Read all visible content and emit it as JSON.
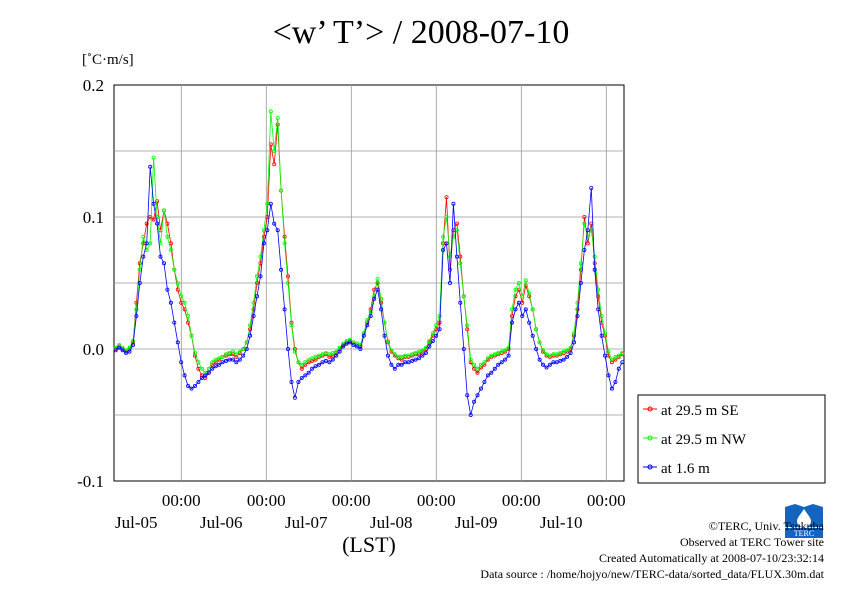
{
  "title": "<w’ T’> / 2008-07-10",
  "unit_label": "[˚C·m/s]",
  "credits": {
    "copyright": "©TERC, Univ. Tsukuba",
    "site": "Observed at TERC Tower site",
    "created": "Created Automatically at 2008-07-10/23:32:14",
    "source": "Data source : /home/hojyo/new/TERC-data/sorted_data/FLUX.30m.dat",
    "logo_text": "TERC"
  },
  "chart_data": {
    "type": "line",
    "title": "<w’ T’> / 2008-07-10",
    "xlabel": "(LST)",
    "ylabel": "[˚C·m/s]",
    "ylim": [
      -0.1,
      0.2
    ],
    "xlim_hours": [
      0,
      144
    ],
    "yticks": [
      -0.1,
      0.0,
      0.1,
      0.2
    ],
    "ytick_labels": [
      "-0.1",
      "0.0",
      "0.1",
      "0.2"
    ],
    "xticks": [
      {
        "top": "00:00",
        "bottom": "Jul-05"
      },
      {
        "top": "00:00",
        "bottom": "Jul-06"
      },
      {
        "top": "00:00",
        "bottom": "Jul-07"
      },
      {
        "top": "00:00",
        "bottom": "Jul-08"
      },
      {
        "top": "00:00",
        "bottom": "Jul-09"
      },
      {
        "top": "00:00",
        "bottom": "Jul-10"
      }
    ],
    "grid": true,
    "legend_position": "right-bottom",
    "series": [
      {
        "name": "at 29.5 m SE",
        "color": "#ff0000",
        "values": [
          0.0,
          0.002,
          0.0,
          -0.002,
          0.0,
          0.005,
          0.035,
          0.065,
          0.08,
          0.095,
          0.1,
          0.098,
          0.112,
          0.09,
          0.105,
          0.095,
          0.08,
          0.06,
          0.045,
          0.035,
          0.03,
          0.02,
          0.01,
          -0.005,
          -0.015,
          -0.02,
          -0.022,
          -0.018,
          -0.012,
          -0.01,
          -0.008,
          -0.006,
          -0.005,
          -0.004,
          -0.004,
          -0.006,
          -0.003,
          0.0,
          0.005,
          0.015,
          0.03,
          0.05,
          0.065,
          0.085,
          0.1,
          0.155,
          0.14,
          0.17,
          0.12,
          0.085,
          0.055,
          0.02,
          0.0,
          -0.01,
          -0.015,
          -0.012,
          -0.01,
          -0.009,
          -0.008,
          -0.006,
          -0.005,
          -0.004,
          -0.006,
          -0.005,
          -0.003,
          0.0,
          0.003,
          0.005,
          0.006,
          0.005,
          0.004,
          0.002,
          0.012,
          0.02,
          0.03,
          0.045,
          0.05,
          0.035,
          0.02,
          0.005,
          -0.002,
          -0.005,
          -0.007,
          -0.008,
          -0.006,
          -0.006,
          -0.005,
          -0.004,
          -0.004,
          -0.002,
          0.0,
          0.005,
          0.01,
          0.015,
          0.02,
          0.08,
          0.115,
          0.06,
          0.09,
          0.095,
          0.07,
          0.04,
          0.015,
          -0.01,
          -0.015,
          -0.018,
          -0.014,
          -0.012,
          -0.008,
          -0.006,
          -0.005,
          -0.004,
          -0.003,
          -0.002,
          0.0,
          0.025,
          0.04,
          0.045,
          0.035,
          0.048,
          0.04,
          0.03,
          0.015,
          0.005,
          -0.002,
          -0.005,
          -0.006,
          -0.005,
          -0.005,
          -0.004,
          -0.003,
          -0.002,
          0.0,
          0.01,
          0.03,
          0.06,
          0.1,
          0.08,
          0.095,
          0.065,
          0.04,
          0.02,
          0.01,
          -0.005,
          -0.01,
          -0.008,
          -0.006,
          -0.004
        ]
      },
      {
        "name": "at 29.5 m NW",
        "color": "#00ff00",
        "values": [
          0.001,
          0.003,
          0.001,
          -0.001,
          0.001,
          0.006,
          0.03,
          0.06,
          0.085,
          0.075,
          0.08,
          0.145,
          0.1,
          0.08,
          0.105,
          0.085,
          0.075,
          0.06,
          0.05,
          0.04,
          0.035,
          0.025,
          0.01,
          -0.003,
          -0.01,
          -0.015,
          -0.018,
          -0.015,
          -0.01,
          -0.008,
          -0.007,
          -0.006,
          -0.004,
          -0.003,
          -0.002,
          -0.004,
          -0.002,
          0.0,
          0.005,
          0.018,
          0.035,
          0.055,
          0.07,
          0.09,
          0.11,
          0.18,
          0.15,
          0.175,
          0.12,
          0.08,
          0.05,
          0.018,
          -0.002,
          -0.01,
          -0.012,
          -0.01,
          -0.008,
          -0.007,
          -0.006,
          -0.005,
          -0.004,
          -0.003,
          -0.004,
          -0.003,
          -0.002,
          0.001,
          0.004,
          0.006,
          0.007,
          0.005,
          0.004,
          0.003,
          0.012,
          0.022,
          0.028,
          0.04,
          0.053,
          0.038,
          0.02,
          0.006,
          -0.001,
          -0.004,
          -0.006,
          -0.006,
          -0.005,
          -0.005,
          -0.004,
          -0.003,
          -0.002,
          -0.001,
          0.001,
          0.006,
          0.012,
          0.018,
          0.025,
          0.085,
          0.1,
          0.07,
          0.085,
          0.09,
          0.065,
          0.04,
          0.018,
          -0.008,
          -0.012,
          -0.015,
          -0.012,
          -0.01,
          -0.007,
          -0.005,
          -0.004,
          -0.003,
          -0.002,
          -0.001,
          0.001,
          0.03,
          0.045,
          0.05,
          0.04,
          0.052,
          0.042,
          0.03,
          0.015,
          0.005,
          -0.001,
          -0.004,
          -0.005,
          -0.004,
          -0.004,
          -0.003,
          -0.002,
          -0.001,
          0.001,
          0.012,
          0.035,
          0.065,
          0.095,
          0.085,
          0.09,
          0.07,
          0.045,
          0.025,
          0.012,
          -0.002,
          -0.008,
          -0.006,
          -0.005,
          -0.003
        ]
      },
      {
        "name": "at 1.6 m",
        "color": "#0000ff",
        "values": [
          -0.001,
          0.001,
          -0.001,
          -0.003,
          -0.002,
          0.003,
          0.025,
          0.05,
          0.07,
          0.08,
          0.138,
          0.11,
          0.095,
          0.07,
          0.065,
          0.045,
          0.035,
          0.02,
          0.005,
          -0.01,
          -0.02,
          -0.028,
          -0.03,
          -0.028,
          -0.025,
          -0.022,
          -0.02,
          -0.018,
          -0.015,
          -0.013,
          -0.012,
          -0.01,
          -0.009,
          -0.008,
          -0.008,
          -0.01,
          -0.008,
          -0.005,
          0.0,
          0.01,
          0.025,
          0.04,
          0.055,
          0.08,
          0.09,
          0.11,
          0.095,
          0.09,
          0.06,
          0.03,
          0.0,
          -0.025,
          -0.037,
          -0.025,
          -0.022,
          -0.02,
          -0.018,
          -0.015,
          -0.013,
          -0.012,
          -0.01,
          -0.009,
          -0.01,
          -0.008,
          -0.005,
          -0.002,
          0.002,
          0.004,
          0.005,
          0.003,
          0.002,
          0.0,
          0.01,
          0.018,
          0.025,
          0.038,
          0.045,
          0.03,
          0.01,
          -0.005,
          -0.012,
          -0.015,
          -0.012,
          -0.012,
          -0.01,
          -0.01,
          -0.009,
          -0.008,
          -0.007,
          -0.005,
          -0.003,
          0.002,
          0.006,
          0.01,
          0.015,
          0.075,
          0.08,
          0.05,
          0.11,
          0.07,
          0.035,
          0.0,
          -0.035,
          -0.05,
          -0.04,
          -0.035,
          -0.03,
          -0.025,
          -0.02,
          -0.018,
          -0.015,
          -0.012,
          -0.01,
          -0.008,
          -0.005,
          0.02,
          0.03,
          0.035,
          0.025,
          0.03,
          0.02,
          0.01,
          0.0,
          -0.008,
          -0.012,
          -0.014,
          -0.012,
          -0.01,
          -0.01,
          -0.009,
          -0.008,
          -0.006,
          -0.003,
          0.005,
          0.025,
          0.05,
          0.075,
          0.09,
          0.122,
          0.06,
          0.03,
          0.01,
          -0.005,
          -0.02,
          -0.03,
          -0.025,
          -0.015,
          -0.01
        ]
      }
    ]
  }
}
